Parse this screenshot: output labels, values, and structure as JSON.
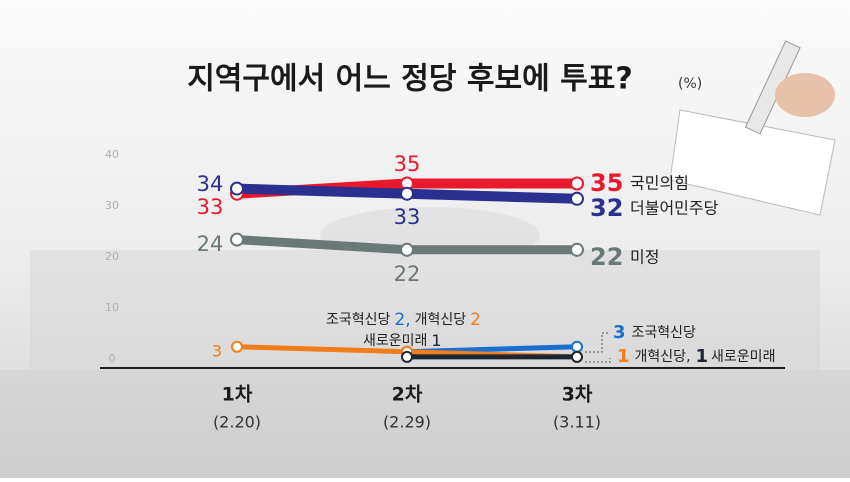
{
  "chart_data": {
    "type": "line",
    "title": "지역구에서 어느 정당 후보에 투표?",
    "unit": "(%)",
    "categories": [
      "1차",
      "2차",
      "3차"
    ],
    "dates": [
      "(2.20)",
      "(2.29)",
      "(3.11)"
    ],
    "ylim": [
      0,
      40
    ],
    "yticks": [
      0,
      10,
      20,
      30,
      40
    ],
    "grid": false,
    "separator": ",",
    "series": [
      {
        "name": "국민의힘",
        "color": "#e8192c",
        "values": [
          33,
          35,
          35
        ]
      },
      {
        "name": "더불어민주당",
        "color": "#2b2f8f",
        "values": [
          34,
          33,
          32
        ]
      },
      {
        "name": "미정",
        "color": "#6b7878",
        "values": [
          24,
          22,
          22
        ]
      },
      {
        "name": "조국혁신당",
        "color": "#1a6fd1",
        "values": [
          null,
          2,
          3
        ]
      },
      {
        "name": "개혁신당",
        "color": "#f07d1a",
        "values": [
          3,
          2,
          1
        ]
      },
      {
        "name": "새로운미래",
        "color": "#1c2533",
        "values": [
          null,
          1,
          1
        ]
      }
    ]
  }
}
